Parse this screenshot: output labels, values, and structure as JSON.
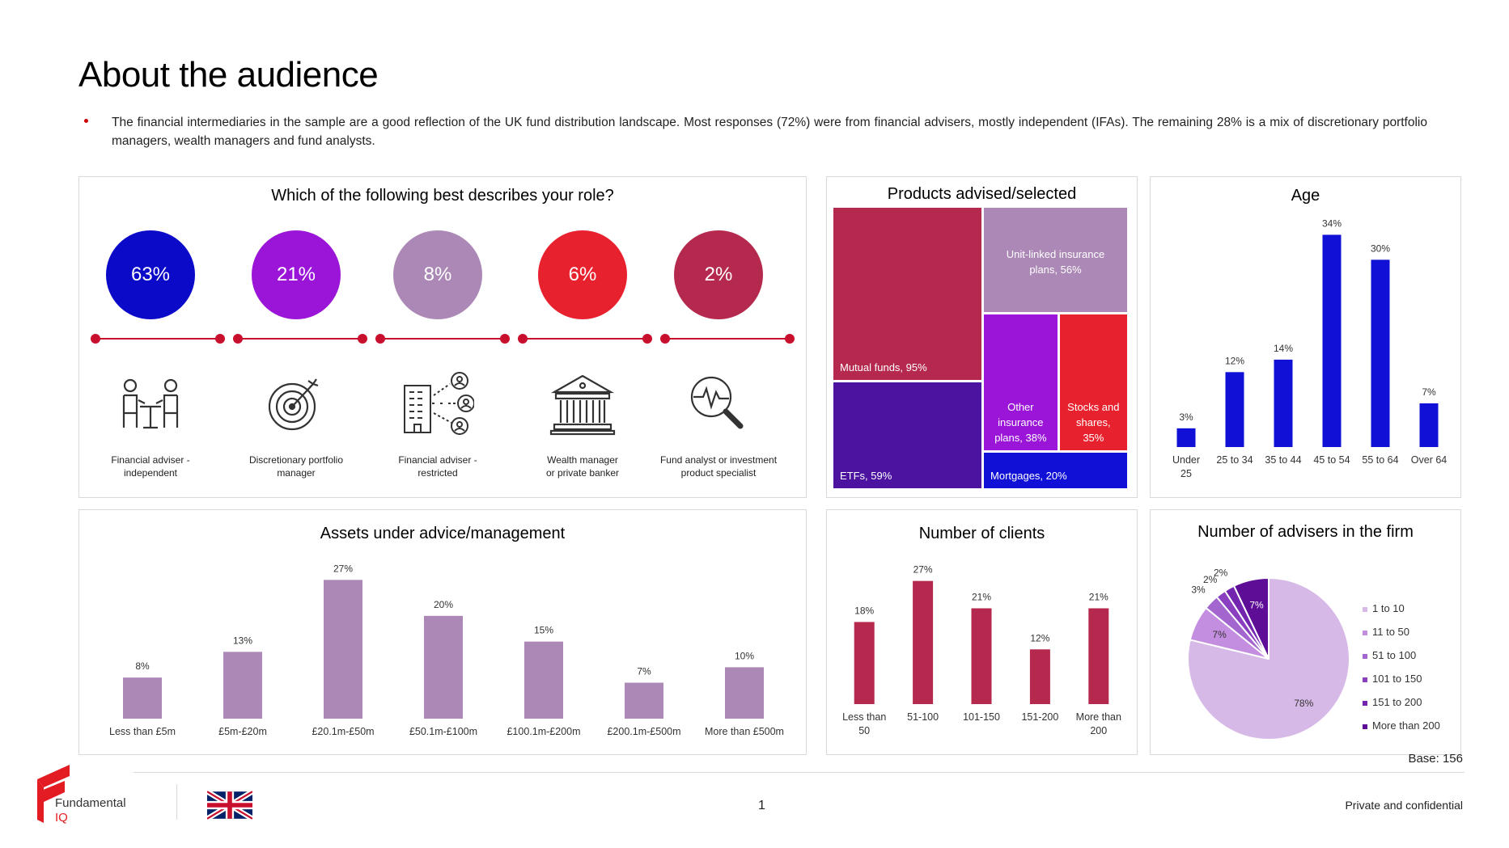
{
  "page": {
    "title": "About the audience",
    "bullet": "The financial intermediaries  in the sample are a good reflection of the UK fund distribution landscape. Most responses (72%) were from financial advisers, mostly independent (IFAs). The remaining 28% is a mix of discretionary portfolio managers,  wealth managers and fund analysts.",
    "base": "Base: 156",
    "page_number": "1",
    "confidential": "Private and confidential",
    "logo_text_1": "Fundamental",
    "logo_text_2": "IQ"
  },
  "colors": {
    "blue": "#0a0ac8",
    "purple": "#9b15d9",
    "lilac": "#ab88b5",
    "red": "#e8212e",
    "crimson": "#b5294e",
    "deep_purple": "#4b13a0",
    "royal_blue": "#1010d6",
    "light_lilac": "#d7b9e8"
  },
  "chart_data": [
    {
      "id": "role",
      "type": "bar",
      "title": "Which of the following best describes your role?",
      "categories": [
        "Financial adviser - independent",
        "Discretionary portfolio manager",
        "Financial adviser - restricted",
        "Wealth manager or private banker",
        "Fund analyst or investment product specialist"
      ],
      "values": [
        63,
        21,
        8,
        6,
        2
      ],
      "value_labels": [
        "63%",
        "21%",
        "8%",
        "6%",
        "2%"
      ],
      "label_lines": [
        [
          "Financial adviser -",
          "independent"
        ],
        [
          "Discretionary portfolio",
          "manager"
        ],
        [
          "Financial adviser -",
          "restricted"
        ],
        [
          "Wealth manager",
          "or private banker"
        ],
        [
          "Fund analyst or investment",
          "product specialist"
        ]
      ],
      "icons": [
        "meeting-icon",
        "target-icon",
        "network-icon",
        "bank-icon",
        "analysis-icon"
      ],
      "circle_colors": [
        "#0a0ac8",
        "#9b15d9",
        "#ab88b5",
        "#e8212e",
        "#b5294e"
      ]
    },
    {
      "id": "products",
      "type": "treemap",
      "title": "Products advised/selected",
      "items": [
        {
          "name": "Mutual funds",
          "value": 95,
          "label": "Mutual funds, 95%",
          "color": "#b5294e"
        },
        {
          "name": "ETFs",
          "value": 59,
          "label": "ETFs, 59%",
          "color": "#4b13a0"
        },
        {
          "name": "Unit-linked insurance plans",
          "value": 56,
          "label_lines": [
            "Unit-linked insurance",
            "plans, 56%"
          ],
          "color": "#ab88b5"
        },
        {
          "name": "Other insurance plans",
          "value": 38,
          "label_lines": [
            "Other",
            "insurance",
            "plans, 38%"
          ],
          "color": "#9b15d9"
        },
        {
          "name": "Stocks and shares",
          "value": 35,
          "label_lines": [
            "Stocks and",
            "shares,",
            "35%"
          ],
          "color": "#e8212e"
        },
        {
          "name": "Mortgages",
          "value": 20,
          "label": "Mortgages, 20%",
          "color": "#1010d6"
        }
      ]
    },
    {
      "id": "age",
      "type": "bar",
      "title": "Age",
      "categories": [
        "Under 25",
        "25 to 34",
        "35 to 44",
        "45 to 54",
        "55 to 64",
        "Over 64"
      ],
      "category_lines": [
        [
          "Under",
          "25"
        ],
        [
          "25 to 34"
        ],
        [
          "35 to 44"
        ],
        [
          "45 to 54"
        ],
        [
          "55 to 64"
        ],
        [
          "Over 64"
        ]
      ],
      "values": [
        3,
        12,
        14,
        34,
        30,
        7
      ],
      "value_labels": [
        "3%",
        "12%",
        "14%",
        "34%",
        "30%",
        "7%"
      ],
      "ylim": [
        0,
        36
      ],
      "color": "#1010d6"
    },
    {
      "id": "assets",
      "type": "bar",
      "title": "Assets under advice/management",
      "categories": [
        "Less than £5m",
        "£5m-£20m",
        "£20.1m-£50m",
        "£50.1m-£100m",
        "£100.1m-£200m",
        "£200.1m-£500m",
        "More than £500m"
      ],
      "values": [
        8,
        13,
        27,
        20,
        15,
        7,
        10
      ],
      "value_labels": [
        "8%",
        "13%",
        "27%",
        "20%",
        "15%",
        "7%",
        "10%"
      ],
      "ylim": [
        0,
        28
      ],
      "color": "#ab88b5"
    },
    {
      "id": "clients",
      "type": "bar",
      "title": "Number of clients",
      "categories": [
        "Less than 50",
        "51-100",
        "101-150",
        "151-200",
        "More than 200"
      ],
      "category_lines": [
        [
          "Less than",
          "50"
        ],
        [
          "51-100"
        ],
        [
          "101-150"
        ],
        [
          "151-200"
        ],
        [
          "More than",
          "200"
        ]
      ],
      "values": [
        18,
        27,
        21,
        12,
        21
      ],
      "value_labels": [
        "18%",
        "27%",
        "21%",
        "12%",
        "21%"
      ],
      "ylim": [
        0,
        28
      ],
      "color": "#b5294e"
    },
    {
      "id": "advisers",
      "type": "pie",
      "title": "Number of advisers in the firm",
      "categories": [
        "1 to 10",
        "11 to 50",
        "51 to 100",
        "101 to 150",
        "151 to 200",
        "More than 200"
      ],
      "values": [
        78,
        7,
        3,
        2,
        2,
        7
      ],
      "value_labels": [
        "78%",
        "7%",
        "3%",
        "2%",
        "2%",
        "7%"
      ],
      "colors": [
        "#d7b9e8",
        "#c48ee0",
        "#a366cf",
        "#8a3fc0",
        "#7425b0",
        "#5d0d96"
      ],
      "legend": "right"
    }
  ]
}
